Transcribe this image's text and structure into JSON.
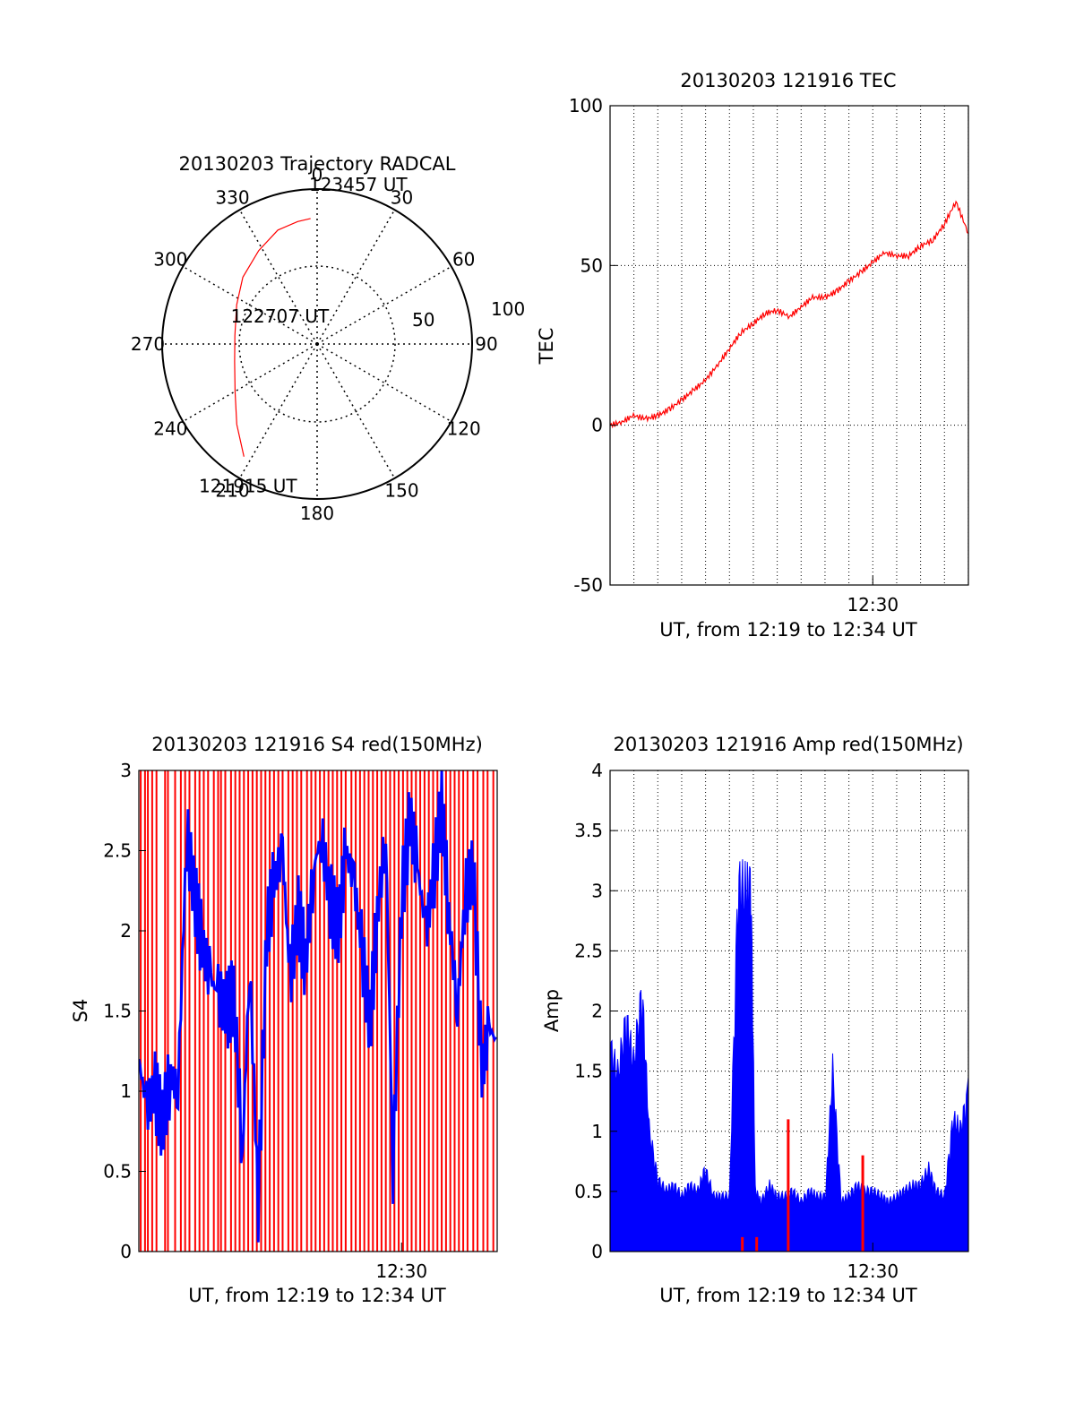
{
  "chart_data": [
    {
      "type": "polar",
      "title": "20130203 Trajectory RADCAL",
      "azimuth_labels": [
        "0",
        "30",
        "60",
        "90",
        "120",
        "150",
        "180",
        "210",
        "240",
        "270",
        "300",
        "330"
      ],
      "elevation_rings": [
        0,
        50,
        100
      ],
      "ring_labels": [
        "50",
        "100"
      ],
      "grid": true,
      "series": [
        {
          "color": "#ff0000",
          "points": [
            {
              "az": 213,
              "zen": 78
            },
            {
              "az": 225,
              "zen": 66
            },
            {
              "az": 240,
              "zen": 55
            },
            {
              "az": 258,
              "zen": 49
            },
            {
              "az": 276,
              "zen": 48
            },
            {
              "az": 296,
              "zen": 52
            },
            {
              "az": 312,
              "zen": 58
            },
            {
              "az": 328,
              "zen": 64
            },
            {
              "az": 341,
              "zen": 70
            },
            {
              "az": 351,
              "zen": 72
            },
            {
              "az": 357,
              "zen": 73
            }
          ]
        }
      ],
      "annotations": [
        {
          "text": "123457 UT",
          "az": 15,
          "zen": 92
        },
        {
          "text": "122707 UT",
          "az": 300,
          "zen": 25
        },
        {
          "text": "121915 UT",
          "az": 205,
          "zen": 95
        }
      ]
    },
    {
      "type": "line",
      "title": "20130203 121916 TEC",
      "xlabel": "UT, from 12:19 to 12:34 UT",
      "ylabel": "TEC",
      "xlim": [
        12.3167,
        12.5667
      ],
      "ylim": [
        -50,
        100
      ],
      "yticks": [
        "-50",
        "0",
        "50",
        "100"
      ],
      "xticks": [
        {
          "v": 12.5,
          "label": "12:30"
        }
      ],
      "grid": true,
      "series": [
        {
          "color": "#ff0000",
          "x": [
            12.3167,
            12.325,
            12.333,
            12.342,
            12.35,
            12.358,
            12.367,
            12.375,
            12.383,
            12.392,
            12.4,
            12.408,
            12.417,
            12.425,
            12.433,
            12.442,
            12.45,
            12.458,
            12.467,
            12.475,
            12.483,
            12.492,
            12.5,
            12.508,
            12.517,
            12.525,
            12.533,
            12.542,
            12.55,
            12.558,
            12.5667
          ],
          "y": [
            0,
            1,
            3,
            2,
            3,
            5,
            8,
            11,
            14,
            19,
            24,
            29,
            32,
            35,
            36,
            34,
            37,
            40,
            40,
            42,
            45,
            48,
            51,
            54,
            53,
            53,
            56,
            58,
            63,
            70,
            60
          ]
        }
      ]
    },
    {
      "type": "bar",
      "title": "20130203 121916 S4 red(150MHz)",
      "xlabel": "UT, from 12:19 to 12:34 UT",
      "ylabel": "S4",
      "xlim": [
        12.3167,
        12.5667
      ],
      "ylim": [
        0,
        3
      ],
      "yticks": [
        "0",
        "0.5",
        "1",
        "1.5",
        "2",
        "2.5",
        "3"
      ],
      "xticks": [
        {
          "v": 12.5,
          "label": "12:30"
        }
      ],
      "grid": false,
      "series": [
        {
          "color": "#0000ff",
          "x": [
            12.3167,
            12.322,
            12.328,
            12.333,
            12.339,
            12.344,
            12.35,
            12.356,
            12.361,
            12.367,
            12.372,
            12.378,
            12.383,
            12.389,
            12.394,
            12.4,
            12.406,
            12.411,
            12.417,
            12.422,
            12.428,
            12.433,
            12.439,
            12.444,
            12.45,
            12.456,
            12.461,
            12.467,
            12.472,
            12.478,
            12.483,
            12.489,
            12.494,
            12.5,
            12.506,
            12.511,
            12.517,
            12.522,
            12.528,
            12.533,
            12.539,
            12.544,
            12.55,
            12.556,
            12.561,
            12.5667
          ],
          "y": [
            1.2,
            0.9,
            1.0,
            0.8,
            1.1,
            1.0,
            2.6,
            2.2,
            1.9,
            1.7,
            1.6,
            1.5,
            1.6,
            0.6,
            1.8,
            0.3,
            2.0,
            2.3,
            2.5,
            1.7,
            2.1,
            1.8,
            2.4,
            2.6,
            2.2,
            2.0,
            2.5,
            2.3,
            1.9,
            1.4,
            2.1,
            2.6,
            0.5,
            2.2,
            2.7,
            2.4,
            2.0,
            2.3,
            2.8,
            2.1,
            1.5,
            2.2,
            2.4,
            1.1,
            1.4,
            1.3
          ]
        }
      ],
      "red_spikes_x": [
        12.318,
        12.321,
        12.323,
        12.326,
        12.329,
        12.335,
        12.337,
        12.342,
        12.346,
        12.349,
        12.352,
        12.356,
        12.359,
        12.362,
        12.365,
        12.369,
        12.372,
        12.374,
        12.377,
        12.381,
        12.384,
        12.387,
        12.39,
        12.393,
        12.396,
        12.399,
        12.402,
        12.405,
        12.408,
        12.411,
        12.414,
        12.417,
        12.421,
        12.424,
        12.427,
        12.43,
        12.434,
        12.437,
        12.44,
        12.443,
        12.446,
        12.449,
        12.452,
        12.455,
        12.458,
        12.461,
        12.465,
        12.468,
        12.471,
        12.474,
        12.477,
        12.48,
        12.483,
        12.486,
        12.489,
        12.492,
        12.495,
        12.498,
        12.501,
        12.504,
        12.507,
        12.51,
        12.513,
        12.516,
        12.519,
        12.522,
        12.525,
        12.528,
        12.531,
        12.534,
        12.537,
        12.54,
        12.543,
        12.546,
        12.55,
        12.553,
        12.557,
        12.56,
        12.564
      ]
    },
    {
      "type": "bar",
      "title": "20130203 121916 Amp red(150MHz)",
      "xlabel": "UT, from 12:19 to 12:34 UT",
      "ylabel": "Amp",
      "xlim": [
        12.3167,
        12.5667
      ],
      "ylim": [
        0,
        4
      ],
      "yticks": [
        "0",
        "0.5",
        "1",
        "1.5",
        "2",
        "2.5",
        "3",
        "3.5",
        "4"
      ],
      "xticks": [
        {
          "v": 12.5,
          "label": "12:30"
        }
      ],
      "grid": true,
      "series": [
        {
          "color": "#0000ff",
          "x": [
            12.3167,
            12.322,
            12.328,
            12.333,
            12.339,
            12.344,
            12.35,
            12.356,
            12.361,
            12.367,
            12.372,
            12.378,
            12.383,
            12.389,
            12.394,
            12.4,
            12.406,
            12.411,
            12.415,
            12.418,
            12.422,
            12.428,
            12.433,
            12.439,
            12.444,
            12.45,
            12.456,
            12.461,
            12.467,
            12.472,
            12.478,
            12.483,
            12.489,
            12.494,
            12.5,
            12.506,
            12.511,
            12.517,
            12.522,
            12.528,
            12.533,
            12.539,
            12.544,
            12.55,
            12.556,
            12.561,
            12.5667
          ],
          "y": [
            1.85,
            1.6,
            2.1,
            1.7,
            2.35,
            1.1,
            0.65,
            0.55,
            0.6,
            0.5,
            0.6,
            0.55,
            0.75,
            0.5,
            0.5,
            0.5,
            3.3,
            3.25,
            3.3,
            0.55,
            0.45,
            0.6,
            0.5,
            0.5,
            0.55,
            0.45,
            0.55,
            0.5,
            0.5,
            1.65,
            0.45,
            0.5,
            0.6,
            0.55,
            0.55,
            0.5,
            0.45,
            0.5,
            0.55,
            0.6,
            0.6,
            0.75,
            0.55,
            0.5,
            1.2,
            1.1,
            1.45
          ]
        },
        {
          "color": "#ff0000",
          "x": [
            12.409,
            12.419,
            12.441,
            12.493
          ],
          "y": [
            0.12,
            0.12,
            1.1,
            0.8
          ]
        }
      ]
    }
  ]
}
